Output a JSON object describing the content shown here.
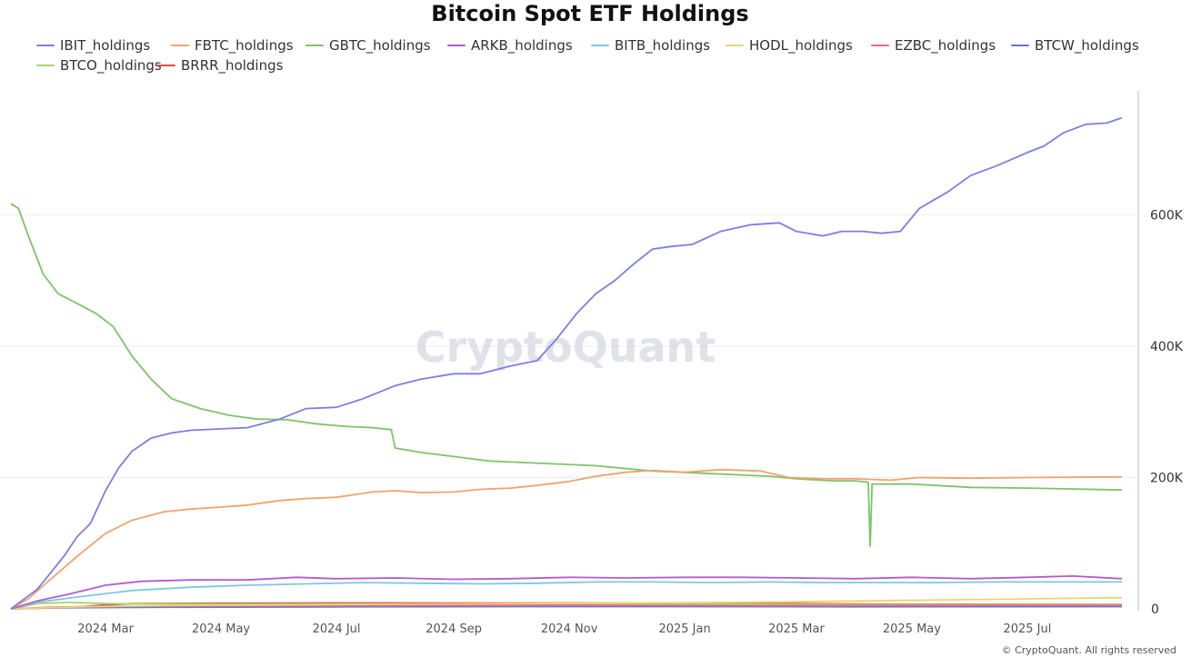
{
  "header": {
    "title": "Bitcoin Spot ETF Holdings"
  },
  "footer": {
    "copyright": "© CryptoQuant. All rights reserved"
  },
  "watermark": {
    "text": "CryptoQuant"
  },
  "chart_data": {
    "type": "line",
    "title": "Bitcoin Spot ETF Holdings",
    "xlabel": "",
    "ylabel": "",
    "x_range": [
      "2024-01-11",
      "2025-08-20"
    ],
    "ylim": [
      0,
      800000
    ],
    "grid": true,
    "legend_placement": "top",
    "y_ticks": [
      {
        "value": 0,
        "label": "0"
      },
      {
        "value": 200000,
        "label": "200K"
      },
      {
        "value": 400000,
        "label": "400K"
      },
      {
        "value": 600000,
        "label": "600K"
      }
    ],
    "x_ticks": [
      {
        "date": "2024-03-01",
        "label": "2024 Mar"
      },
      {
        "date": "2024-05-01",
        "label": "2024 May"
      },
      {
        "date": "2024-07-01",
        "label": "2024 Jul"
      },
      {
        "date": "2024-09-01",
        "label": "2024 Sep"
      },
      {
        "date": "2024-11-01",
        "label": "2024 Nov"
      },
      {
        "date": "2025-01-01",
        "label": "2025 Jan"
      },
      {
        "date": "2025-03-01",
        "label": "2025 Mar"
      },
      {
        "date": "2025-05-01",
        "label": "2025 May"
      },
      {
        "date": "2025-07-01",
        "label": "2025 Jul"
      }
    ],
    "series": [
      {
        "name": "IBIT_holdings",
        "color": "#7b7fe0",
        "points": [
          [
            "2024-01-11",
            0
          ],
          [
            "2024-01-18",
            15000
          ],
          [
            "2024-01-25",
            30000
          ],
          [
            "2024-02-01",
            55000
          ],
          [
            "2024-02-08",
            80000
          ],
          [
            "2024-02-15",
            110000
          ],
          [
            "2024-02-22",
            130000
          ],
          [
            "2024-03-01",
            180000
          ],
          [
            "2024-03-08",
            215000
          ],
          [
            "2024-03-15",
            240000
          ],
          [
            "2024-03-25",
            260000
          ],
          [
            "2024-04-05",
            268000
          ],
          [
            "2024-04-15",
            272000
          ],
          [
            "2024-04-30",
            274000
          ],
          [
            "2024-05-15",
            276000
          ],
          [
            "2024-06-01",
            289000
          ],
          [
            "2024-06-15",
            305000
          ],
          [
            "2024-07-01",
            307000
          ],
          [
            "2024-07-15",
            320000
          ],
          [
            "2024-08-01",
            340000
          ],
          [
            "2024-08-15",
            350000
          ],
          [
            "2024-09-01",
            358000
          ],
          [
            "2024-09-15",
            358000
          ],
          [
            "2024-10-01",
            370000
          ],
          [
            "2024-10-15",
            378000
          ],
          [
            "2024-10-25",
            410000
          ],
          [
            "2024-11-05",
            450000
          ],
          [
            "2024-11-15",
            480000
          ],
          [
            "2024-11-25",
            500000
          ],
          [
            "2024-12-05",
            525000
          ],
          [
            "2024-12-15",
            548000
          ],
          [
            "2024-12-25",
            552000
          ],
          [
            "2025-01-05",
            555000
          ],
          [
            "2025-01-20",
            575000
          ],
          [
            "2025-02-05",
            585000
          ],
          [
            "2025-02-20",
            588000
          ],
          [
            "2025-03-01",
            575000
          ],
          [
            "2025-03-15",
            568000
          ],
          [
            "2025-03-25",
            575000
          ],
          [
            "2025-04-05",
            575000
          ],
          [
            "2025-04-15",
            572000
          ],
          [
            "2025-04-25",
            575000
          ],
          [
            "2025-05-05",
            610000
          ],
          [
            "2025-05-20",
            635000
          ],
          [
            "2025-06-01",
            660000
          ],
          [
            "2025-06-15",
            675000
          ],
          [
            "2025-07-01",
            695000
          ],
          [
            "2025-07-10",
            705000
          ],
          [
            "2025-07-20",
            725000
          ],
          [
            "2025-08-01",
            738000
          ],
          [
            "2025-08-12",
            740000
          ],
          [
            "2025-08-20",
            748000
          ]
        ]
      },
      {
        "name": "FBTC_holdings",
        "color": "#f0a36b",
        "points": [
          [
            "2024-01-11",
            0
          ],
          [
            "2024-01-20",
            15000
          ],
          [
            "2024-02-01",
            45000
          ],
          [
            "2024-02-15",
            80000
          ],
          [
            "2024-03-01",
            115000
          ],
          [
            "2024-03-15",
            135000
          ],
          [
            "2024-04-01",
            148000
          ],
          [
            "2024-04-15",
            152000
          ],
          [
            "2024-05-01",
            155000
          ],
          [
            "2024-05-15",
            158000
          ],
          [
            "2024-06-01",
            165000
          ],
          [
            "2024-06-15",
            168000
          ],
          [
            "2024-07-01",
            170000
          ],
          [
            "2024-07-20",
            178000
          ],
          [
            "2024-08-01",
            180000
          ],
          [
            "2024-08-15",
            177000
          ],
          [
            "2024-09-01",
            178000
          ],
          [
            "2024-09-15",
            182000
          ],
          [
            "2024-10-01",
            184000
          ],
          [
            "2024-10-15",
            188000
          ],
          [
            "2024-11-01",
            194000
          ],
          [
            "2024-11-15",
            202000
          ],
          [
            "2024-12-01",
            208000
          ],
          [
            "2024-12-15",
            211000
          ],
          [
            "2025-01-01",
            208000
          ],
          [
            "2025-01-20",
            212000
          ],
          [
            "2025-02-10",
            210000
          ],
          [
            "2025-02-25",
            200000
          ],
          [
            "2025-03-15",
            198000
          ],
          [
            "2025-04-01",
            198000
          ],
          [
            "2025-04-20",
            196000
          ],
          [
            "2025-05-05",
            200000
          ],
          [
            "2025-06-01",
            199000
          ],
          [
            "2025-07-01",
            200000
          ],
          [
            "2025-08-20",
            201000
          ]
        ]
      },
      {
        "name": "GBTC_holdings",
        "color": "#7cc46a",
        "points": [
          [
            "2024-01-11",
            617000
          ],
          [
            "2024-01-15",
            610000
          ],
          [
            "2024-01-20",
            570000
          ],
          [
            "2024-01-28",
            510000
          ],
          [
            "2024-02-05",
            480000
          ],
          [
            "2024-02-15",
            465000
          ],
          [
            "2024-02-25",
            450000
          ],
          [
            "2024-03-05",
            430000
          ],
          [
            "2024-03-15",
            385000
          ],
          [
            "2024-03-25",
            350000
          ],
          [
            "2024-04-05",
            320000
          ],
          [
            "2024-04-20",
            305000
          ],
          [
            "2024-05-05",
            295000
          ],
          [
            "2024-05-20",
            289000
          ],
          [
            "2024-06-05",
            288000
          ],
          [
            "2024-06-20",
            282000
          ],
          [
            "2024-07-05",
            278000
          ],
          [
            "2024-07-20",
            276000
          ],
          [
            "2024-07-30",
            273000
          ],
          [
            "2024-08-01",
            245000
          ],
          [
            "2024-08-15",
            238000
          ],
          [
            "2024-09-01",
            232000
          ],
          [
            "2024-09-20",
            225000
          ],
          [
            "2024-10-15",
            222000
          ],
          [
            "2024-11-15",
            218000
          ],
          [
            "2024-12-15",
            210000
          ],
          [
            "2025-01-15",
            206000
          ],
          [
            "2025-02-15",
            202000
          ],
          [
            "2025-03-01",
            198000
          ],
          [
            "2025-03-20",
            195000
          ],
          [
            "2025-04-01",
            195000
          ],
          [
            "2025-04-08",
            193000
          ],
          [
            "2025-04-09",
            95000
          ],
          [
            "2025-04-10",
            190000
          ],
          [
            "2025-05-01",
            190000
          ],
          [
            "2025-06-01",
            185000
          ],
          [
            "2025-07-01",
            184000
          ],
          [
            "2025-08-20",
            181000
          ]
        ]
      },
      {
        "name": "ARKB_holdings",
        "color": "#b25ad6",
        "points": [
          [
            "2024-01-11",
            0
          ],
          [
            "2024-01-25",
            12000
          ],
          [
            "2024-02-10",
            22000
          ],
          [
            "2024-03-01",
            36000
          ],
          [
            "2024-03-20",
            42000
          ],
          [
            "2024-04-15",
            44000
          ],
          [
            "2024-05-15",
            44000
          ],
          [
            "2024-06-10",
            48000
          ],
          [
            "2024-07-01",
            46000
          ],
          [
            "2024-08-01",
            47000
          ],
          [
            "2024-09-01",
            45000
          ],
          [
            "2024-10-01",
            46000
          ],
          [
            "2024-11-01",
            48000
          ],
          [
            "2024-12-01",
            47000
          ],
          [
            "2025-01-01",
            48000
          ],
          [
            "2025-02-01",
            48000
          ],
          [
            "2025-03-01",
            47000
          ],
          [
            "2025-04-01",
            46000
          ],
          [
            "2025-05-01",
            48000
          ],
          [
            "2025-06-01",
            46000
          ],
          [
            "2025-07-01",
            48000
          ],
          [
            "2025-07-25",
            50000
          ],
          [
            "2025-08-20",
            46000
          ]
        ]
      },
      {
        "name": "BITB_holdings",
        "color": "#7cc9e0",
        "points": [
          [
            "2024-01-11",
            0
          ],
          [
            "2024-01-25",
            10000
          ],
          [
            "2024-02-15",
            18000
          ],
          [
            "2024-03-15",
            28000
          ],
          [
            "2024-04-15",
            33000
          ],
          [
            "2024-05-15",
            36000
          ],
          [
            "2024-06-15",
            38000
          ],
          [
            "2024-07-15",
            40000
          ],
          [
            "2024-08-15",
            39000
          ],
          [
            "2024-09-15",
            38000
          ],
          [
            "2024-10-15",
            39000
          ],
          [
            "2024-11-15",
            41000
          ],
          [
            "2024-12-15",
            41000
          ],
          [
            "2025-01-15",
            40000
          ],
          [
            "2025-02-15",
            41000
          ],
          [
            "2025-03-15",
            40000
          ],
          [
            "2025-04-15",
            40000
          ],
          [
            "2025-05-15",
            40000
          ],
          [
            "2025-06-15",
            41000
          ],
          [
            "2025-07-15",
            41000
          ],
          [
            "2025-08-20",
            41000
          ]
        ]
      },
      {
        "name": "HODL_holdings",
        "color": "#ecd27a",
        "points": [
          [
            "2024-01-11",
            0
          ],
          [
            "2024-02-15",
            3000
          ],
          [
            "2024-04-01",
            5000
          ],
          [
            "2024-06-01",
            6000
          ],
          [
            "2024-08-01",
            7000
          ],
          [
            "2024-10-01",
            8000
          ],
          [
            "2024-12-01",
            9000
          ],
          [
            "2025-02-01",
            10000
          ],
          [
            "2025-04-01",
            12000
          ],
          [
            "2025-06-01",
            14000
          ],
          [
            "2025-08-20",
            17000
          ]
        ]
      },
      {
        "name": "EZBC_holdings",
        "color": "#e6707e",
        "points": [
          [
            "2024-01-11",
            0
          ],
          [
            "2024-02-01",
            2500
          ],
          [
            "2024-03-01",
            4000
          ],
          [
            "2024-05-01",
            4500
          ],
          [
            "2024-08-01",
            5000
          ],
          [
            "2024-11-01",
            5500
          ],
          [
            "2025-02-01",
            5000
          ],
          [
            "2025-05-01",
            5200
          ],
          [
            "2025-08-20",
            5500
          ]
        ]
      },
      {
        "name": "BTCW_holdings",
        "color": "#6a72d6",
        "points": [
          [
            "2024-01-11",
            0
          ],
          [
            "2024-02-01",
            1500
          ],
          [
            "2024-04-01",
            2500
          ],
          [
            "2024-07-01",
            3000
          ],
          [
            "2024-10-01",
            3500
          ],
          [
            "2025-01-01",
            3500
          ],
          [
            "2025-04-01",
            3200
          ],
          [
            "2025-08-20",
            3400
          ]
        ]
      },
      {
        "name": "BTCO_holdings",
        "color": "#a6d86a",
        "points": [
          [
            "2024-01-11",
            0
          ],
          [
            "2024-01-25",
            8000
          ],
          [
            "2024-02-10",
            10000
          ],
          [
            "2024-03-01",
            8000
          ],
          [
            "2024-05-01",
            7000
          ],
          [
            "2024-08-01",
            7500
          ],
          [
            "2024-11-01",
            7000
          ],
          [
            "2025-02-01",
            7000
          ],
          [
            "2025-05-01",
            6500
          ],
          [
            "2025-08-20",
            6000
          ]
        ]
      },
      {
        "name": "BRRR_holdings",
        "color": "#d9503f",
        "points": [
          [
            "2024-01-11",
            0
          ],
          [
            "2024-02-10",
            2000
          ],
          [
            "2024-03-01",
            6000
          ],
          [
            "2024-03-15",
            8000
          ],
          [
            "2024-05-01",
            8500
          ],
          [
            "2024-07-01",
            9000
          ],
          [
            "2024-09-01",
            8800
          ],
          [
            "2024-11-01",
            9000
          ],
          [
            "2025-01-01",
            8500
          ],
          [
            "2025-03-01",
            8000
          ],
          [
            "2025-05-01",
            7000
          ],
          [
            "2025-08-20",
            6500
          ]
        ]
      }
    ]
  }
}
